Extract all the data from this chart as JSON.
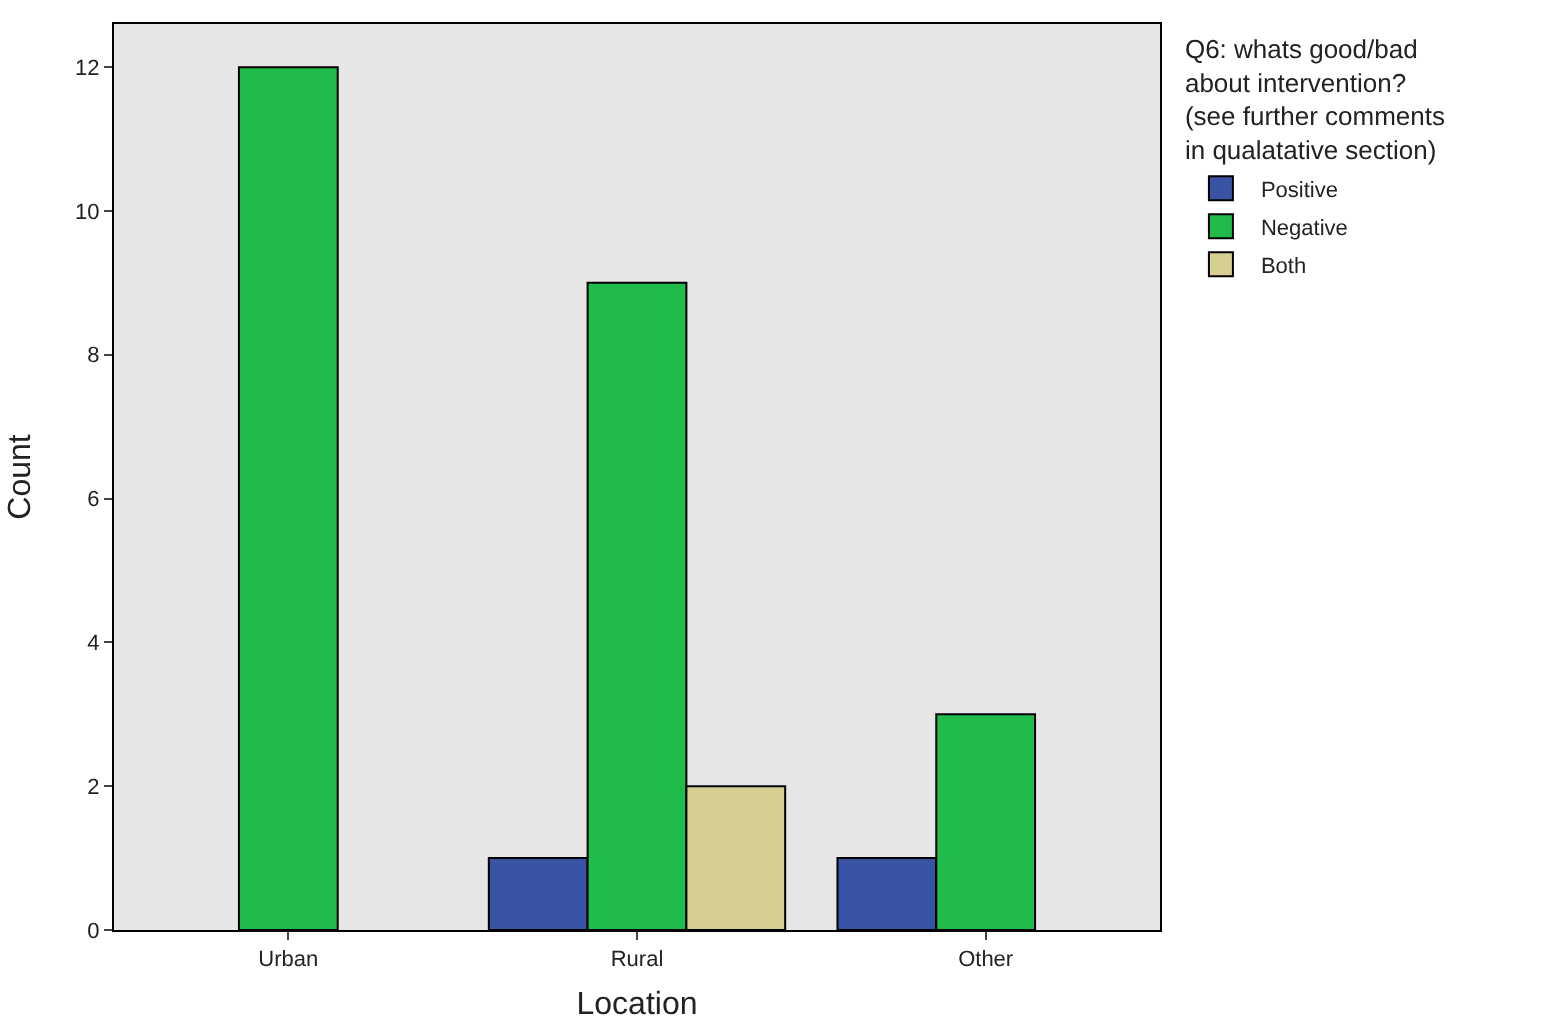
{
  "chart_data": {
    "type": "bar",
    "xlabel": "Location",
    "ylabel": "Count",
    "legend_title": "Q6: whats good/bad\nabout intervention?\n(see further comments\nin qualatative section)",
    "categories": [
      "Urban",
      "Rural",
      "Other"
    ],
    "series": [
      {
        "name": "Positive",
        "color": "#3953a4",
        "values": [
          null,
          1,
          1
        ]
      },
      {
        "name": "Negative",
        "color": "#1fbc4c",
        "values": [
          12,
          9,
          3
        ]
      },
      {
        "name": "Both",
        "color": "#d6cf94",
        "values": [
          null,
          2,
          null
        ]
      }
    ],
    "ylim": [
      0,
      12.6
    ],
    "yticks": [
      0,
      2,
      4,
      6,
      8,
      10,
      12
    ],
    "grid": false,
    "legend": "top right"
  }
}
